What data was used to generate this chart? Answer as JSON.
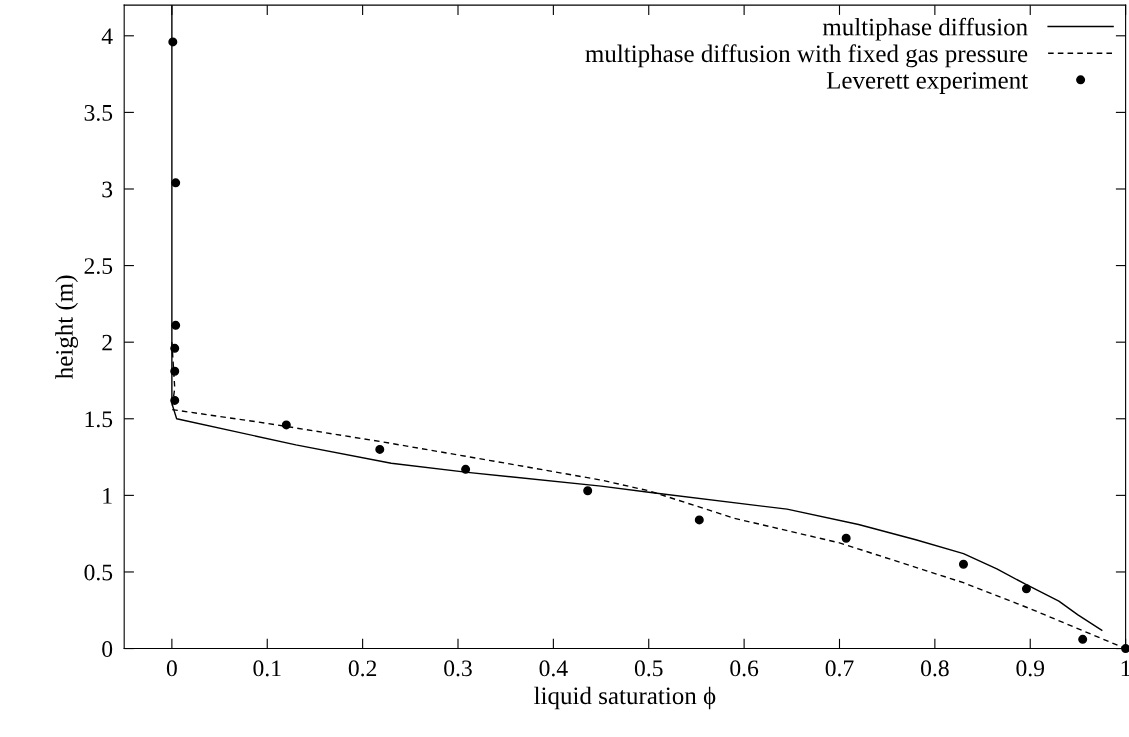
{
  "chart_data": {
    "type": "line",
    "xlabel": "liquid saturation ϕ",
    "ylabel": "height (m)",
    "xlim": [
      -0.05,
      1
    ],
    "ylim": [
      0,
      4.2
    ],
    "xticks": [
      0,
      0.1,
      0.2,
      0.3,
      0.4,
      0.5,
      0.6,
      0.7,
      0.8,
      0.9,
      1
    ],
    "yticks": [
      0,
      0.5,
      1,
      1.5,
      2,
      2.5,
      3,
      3.5,
      4
    ],
    "grid": false,
    "legend": "top right",
    "series": [
      {
        "name": "multiphase diffusion",
        "color": "#000000",
        "line_style": "solid",
        "marker": "none",
        "x": [
          0,
          0,
          0.005,
          0.13,
          0.23,
          0.31,
          0.45,
          0.5,
          0.645,
          0.72,
          0.78,
          0.83,
          0.865,
          0.895,
          0.93,
          0.95,
          0.975
        ],
        "values": [
          4.2,
          1.6,
          1.5,
          1.33,
          1.21,
          1.15,
          1.06,
          1.02,
          0.91,
          0.81,
          0.71,
          0.62,
          0.52,
          0.42,
          0.31,
          0.22,
          0.12
        ]
      },
      {
        "name": "multiphase diffusion with fixed gas pressure",
        "color": "#000000",
        "line_style": "dashed",
        "marker": "none",
        "x": [
          0,
          0.003,
          0,
          0.1,
          0.22,
          0.35,
          0.45,
          0.5,
          0.59,
          0.7,
          0.83,
          0.9,
          1.0
        ],
        "values": [
          2.0,
          1.7,
          1.56,
          1.47,
          1.35,
          1.21,
          1.1,
          1.03,
          0.85,
          0.69,
          0.43,
          0.26,
          0.0
        ]
      },
      {
        "name": "Leverett experiment",
        "type": "scatter",
        "color": "#000000",
        "marker": "circle",
        "x": [
          0.001,
          0.004,
          0.004,
          0.003,
          0.003,
          0.003,
          0.12,
          0.218,
          0.308,
          0.436,
          0.553,
          0.707,
          0.83,
          0.896,
          0.955,
          1.0
        ],
        "values": [
          3.96,
          3.04,
          2.11,
          1.96,
          1.81,
          1.62,
          1.46,
          1.3,
          1.17,
          1.03,
          0.84,
          0.72,
          0.55,
          0.39,
          0.06,
          0.0
        ]
      }
    ]
  }
}
